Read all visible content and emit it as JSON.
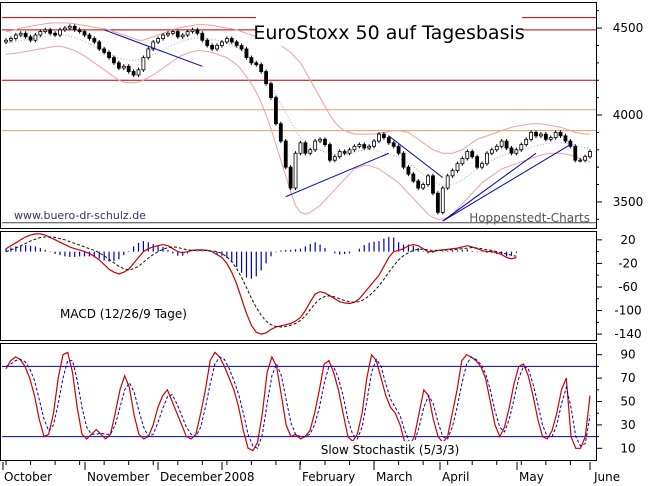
{
  "chart_data": [
    {
      "type": "candlestick",
      "title": "EuroStoxx 50 auf Tagesbasis",
      "ylim": [
        3350,
        4650
      ],
      "yticks": [
        3500,
        4000,
        4500
      ],
      "annotations": [
        "www.buero-dr-schulz.de",
        "Hoppenstedt-Charts"
      ],
      "horizontal_lines": [
        {
          "value": 4560,
          "color": "#c00000"
        },
        {
          "value": 4490,
          "color": "#c00000"
        },
        {
          "value": 4200,
          "color": "#c00000"
        },
        {
          "value": 4030,
          "color": "#e0a060"
        },
        {
          "value": 3910,
          "color": "#e0a060"
        },
        {
          "value": 3380,
          "color": "#444444"
        }
      ],
      "close": [
        4430,
        4440,
        4460,
        4470,
        4450,
        4430,
        4460,
        4480,
        4490,
        4470,
        4460,
        4490,
        4500,
        4510,
        4490,
        4480,
        4460,
        4440,
        4420,
        4380,
        4360,
        4330,
        4300,
        4270,
        4280,
        4250,
        4230,
        4260,
        4330,
        4380,
        4420,
        4440,
        4460,
        4470,
        4480,
        4450,
        4460,
        4480,
        4490,
        4470,
        4430,
        4400,
        4380,
        4400,
        4420,
        4440,
        4420,
        4400,
        4380,
        4330,
        4300,
        4290,
        4250,
        4180,
        4100,
        3950,
        3850,
        3700,
        3580,
        3780,
        3840,
        3780,
        3800,
        3850,
        3860,
        3830,
        3740,
        3760,
        3790,
        3780,
        3800,
        3820,
        3830,
        3810,
        3820,
        3850,
        3890,
        3870,
        3840,
        3820,
        3780,
        3700,
        3660,
        3620,
        3580,
        3600,
        3650,
        3550,
        3440,
        3580,
        3650,
        3680,
        3720,
        3750,
        3790,
        3760,
        3700,
        3720,
        3780,
        3800,
        3820,
        3850,
        3810,
        3780,
        3800,
        3830,
        3860,
        3900,
        3880,
        3890,
        3860,
        3870,
        3900,
        3880,
        3850,
        3820,
        3740,
        3740,
        3760,
        3790
      ],
      "bollinger_upper": [
        4480,
        4485,
        4490,
        4500,
        4505,
        4510,
        4515,
        4520,
        4525,
        4528,
        4530,
        4530,
        4530,
        4528,
        4525,
        4520,
        4515,
        4510,
        4505,
        4500,
        4495,
        4490,
        4480,
        4470,
        4460,
        4450,
        4440,
        4430,
        4430,
        4440,
        4450,
        4460,
        4470,
        4480,
        4490,
        4500,
        4505,
        4510,
        4515,
        4520,
        4520,
        4518,
        4515,
        4510,
        4505,
        4500,
        4495,
        4490,
        4480,
        4470,
        4460,
        4450,
        4440,
        4430,
        4420,
        4410,
        4400,
        4380,
        4360,
        4330,
        4300,
        4250,
        4200,
        4150,
        4100,
        4050,
        4000,
        3960,
        3930,
        3910,
        3900,
        3890,
        3890,
        3890,
        3890,
        3890,
        3895,
        3900,
        3905,
        3910,
        3910,
        3905,
        3900,
        3880,
        3860,
        3840,
        3820,
        3800,
        3790,
        3780,
        3780,
        3780,
        3790,
        3800,
        3820,
        3840,
        3860,
        3870,
        3880,
        3890,
        3900,
        3910,
        3920,
        3930,
        3935,
        3940,
        3945,
        3950,
        3950,
        3950,
        3945,
        3940,
        3935,
        3930,
        3920,
        3910,
        3900,
        3895,
        3890,
        3890
      ],
      "bollinger_lower": [
        4350,
        4352,
        4355,
        4360,
        4365,
        4370,
        4375,
        4380,
        4385,
        4390,
        4395,
        4395,
        4390,
        4380,
        4370,
        4355,
        4340,
        4320,
        4300,
        4280,
        4260,
        4240,
        4220,
        4200,
        4190,
        4185,
        4185,
        4190,
        4200,
        4215,
        4230,
        4250,
        4270,
        4290,
        4310,
        4330,
        4345,
        4355,
        4365,
        4370,
        4370,
        4365,
        4360,
        4350,
        4340,
        4330,
        4310,
        4290,
        4260,
        4220,
        4180,
        4130,
        4070,
        4000,
        3920,
        3830,
        3740,
        3650,
        3560,
        3480,
        3440,
        3430,
        3440,
        3460,
        3480,
        3510,
        3540,
        3570,
        3600,
        3630,
        3660,
        3690,
        3700,
        3710,
        3710,
        3700,
        3690,
        3670,
        3650,
        3630,
        3610,
        3580,
        3550,
        3520,
        3490,
        3460,
        3430,
        3410,
        3400,
        3400,
        3410,
        3430,
        3460,
        3490,
        3520,
        3550,
        3580,
        3610,
        3630,
        3650,
        3670,
        3690,
        3700,
        3710,
        3720,
        3730,
        3740,
        3750,
        3760,
        3770,
        3775,
        3780,
        3780,
        3780,
        3775,
        3770,
        3760,
        3750,
        3740,
        3730
      ],
      "ma": [
        4415,
        4418,
        4422,
        4428,
        4434,
        4438,
        4442,
        4446,
        4452,
        4458,
        4462,
        4462,
        4460,
        4454,
        4446,
        4436,
        4424,
        4410,
        4396,
        4382,
        4368,
        4354,
        4340,
        4328,
        4320,
        4316,
        4314,
        4318,
        4326,
        4336,
        4348,
        4362,
        4376,
        4390,
        4404,
        4416,
        4426,
        4434,
        4440,
        4444,
        4444,
        4440,
        4436,
        4430,
        4422,
        4414,
        4402,
        4390,
        4372,
        4348,
        4322,
        4292,
        4258,
        4218,
        4172,
        4118,
        4066,
        4014,
        3962,
        3908,
        3872,
        3844,
        3822,
        3808,
        3796,
        3788,
        3780,
        3774,
        3770,
        3770,
        3776,
        3784,
        3794,
        3800,
        3802,
        3798,
        3790,
        3782,
        3774,
        3766,
        3756,
        3742,
        3724,
        3704,
        3682,
        3660,
        3640,
        3620,
        3605,
        3596,
        3594,
        3600,
        3612,
        3628,
        3648,
        3668,
        3690,
        3708,
        3724,
        3740,
        3754,
        3766,
        3774,
        3782,
        3790,
        3798,
        3806,
        3814,
        3822,
        3830,
        3834,
        3838,
        3840,
        3840,
        3838,
        3834,
        3826,
        3818,
        3812,
        3808
      ],
      "trendlines": [
        {
          "points": [
            [
              20,
              4490
            ],
            [
              40,
              4280
            ]
          ]
        },
        {
          "points": [
            [
              57,
              3530
            ],
            [
              78,
              3780
            ]
          ]
        },
        {
          "points": [
            [
              78,
              3880
            ],
            [
              89,
              3640
            ]
          ]
        },
        {
          "points": [
            [
              89,
              3390
            ],
            [
              108,
              3780
            ]
          ]
        },
        {
          "points": [
            [
              89,
              3390
            ],
            [
              115,
              3830
            ]
          ]
        }
      ]
    },
    {
      "type": "line",
      "title": "MACD (12/26/9 Tage)",
      "ylim": [
        -150,
        35
      ],
      "yticks": [
        20,
        -20,
        -60,
        -100,
        -140
      ],
      "yticks2": [
        0,
        -40,
        -80,
        -120
      ],
      "series": [
        {
          "color": "#d00000",
          "values": [
            5,
            10,
            15,
            20,
            25,
            28,
            30,
            30,
            28,
            24,
            20,
            16,
            12,
            8,
            5,
            3,
            0,
            -3,
            -8,
            -14,
            -22,
            -30,
            -35,
            -38,
            -35,
            -30,
            -20,
            -10,
            0,
            5,
            8,
            10,
            12,
            10,
            5,
            0,
            -2,
            0,
            2,
            3,
            3,
            2,
            0,
            -5,
            -10,
            -20,
            -35,
            -55,
            -80,
            -105,
            -125,
            -137,
            -140,
            -138,
            -132,
            -128,
            -126,
            -124,
            -122,
            -118,
            -112,
            -100,
            -85,
            -72,
            -68,
            -70,
            -75,
            -80,
            -85,
            -87,
            -88,
            -86,
            -80,
            -70,
            -60,
            -50,
            -40,
            -25,
            -10,
            0,
            2,
            5,
            10,
            12,
            10,
            5,
            0,
            0,
            2,
            3,
            4,
            5,
            6,
            8,
            10,
            8,
            5,
            2,
            0,
            0,
            -2,
            -5,
            -10,
            -12,
            -10
          ]
        },
        {
          "color": "#111111",
          "dashed": true,
          "values": [
            0,
            3,
            6,
            10,
            14,
            18,
            21,
            24,
            25,
            25,
            24,
            22,
            20,
            17,
            14,
            11,
            8,
            5,
            2,
            -2,
            -7,
            -13,
            -19,
            -25,
            -29,
            -31,
            -29,
            -25,
            -18,
            -11,
            -5,
            0,
            4,
            7,
            8,
            7,
            5,
            3,
            2,
            2,
            2,
            2,
            1,
            0,
            -3,
            -9,
            -17,
            -29,
            -44,
            -61,
            -79,
            -95,
            -108,
            -118,
            -124,
            -127,
            -128,
            -127,
            -125,
            -122,
            -117,
            -109,
            -98,
            -88,
            -80,
            -76,
            -75,
            -77,
            -80,
            -83,
            -85,
            -86,
            -85,
            -81,
            -75,
            -67,
            -58,
            -47,
            -35,
            -24,
            -14,
            -7,
            -2,
            2,
            4,
            4,
            3,
            2,
            2,
            2,
            3,
            3,
            4,
            5,
            6,
            7,
            6,
            5,
            3,
            2,
            0,
            -2,
            -4,
            -6,
            -8
          ]
        },
        {
          "color": "#0000c0",
          "type": "histogram",
          "values": [
            5,
            7,
            9,
            10,
            11,
            10,
            9,
            6,
            3,
            -1,
            -4,
            -6,
            -8,
            -9,
            -9,
            -8,
            -8,
            -8,
            -10,
            -12,
            -15,
            -17,
            -16,
            -13,
            -6,
            1,
            9,
            15,
            18,
            16,
            13,
            10,
            8,
            3,
            -3,
            -7,
            -7,
            -3,
            0,
            1,
            1,
            0,
            -1,
            -5,
            -7,
            -11,
            -18,
            -26,
            -36,
            -44,
            -46,
            -42,
            -32,
            -20,
            -8,
            -1,
            2,
            3,
            3,
            4,
            5,
            9,
            13,
            16,
            12,
            6,
            0,
            -3,
            -5,
            -4,
            -3,
            0,
            5,
            11,
            15,
            17,
            18,
            22,
            25,
            24,
            16,
            12,
            12,
            10,
            6,
            1,
            -3,
            -2,
            0,
            1,
            1,
            2,
            2,
            3,
            4,
            1,
            -1,
            -1,
            -2,
            -2,
            -4,
            -6,
            -8,
            -7,
            -2
          ]
        }
      ]
    },
    {
      "type": "line",
      "title": "Slow Stochastik (5/3/3)",
      "ylim": [
        0,
        100
      ],
      "yticks": [
        90,
        70,
        50,
        30,
        10
      ],
      "yticks2": [
        80,
        60,
        40,
        20
      ],
      "horizontal_lines": [
        {
          "value": 80,
          "color": "#0000c0"
        },
        {
          "value": 20,
          "color": "#0000c0"
        }
      ],
      "series": [
        {
          "color": "#d00000",
          "values": [
            78,
            85,
            88,
            86,
            80,
            70,
            55,
            35,
            20,
            22,
            40,
            70,
            90,
            92,
            75,
            45,
            22,
            18,
            22,
            26,
            22,
            18,
            22,
            40,
            60,
            72,
            62,
            38,
            22,
            18,
            20,
            30,
            45,
            55,
            60,
            50,
            40,
            30,
            20,
            18,
            22,
            40,
            60,
            85,
            92,
            88,
            80,
            70,
            60,
            45,
            25,
            10,
            8,
            15,
            40,
            75,
            88,
            80,
            55,
            30,
            20,
            22,
            18,
            20,
            25,
            40,
            60,
            82,
            85,
            75,
            60,
            40,
            20,
            16,
            22,
            40,
            70,
            90,
            85,
            70,
            55,
            45,
            40,
            30,
            15,
            12,
            20,
            40,
            60,
            55,
            35,
            20,
            15,
            20,
            40,
            60,
            85,
            90,
            88,
            85,
            80,
            70,
            50,
            30,
            20,
            28,
            45,
            65,
            80,
            82,
            72,
            55,
            35,
            20,
            18,
            25,
            40,
            60,
            70,
            20,
            10,
            10,
            20,
            55
          ]
        },
        {
          "color": "#0000c0",
          "dashed": true,
          "values": [
            80,
            82,
            85,
            86,
            84,
            78,
            68,
            52,
            35,
            25,
            30,
            48,
            70,
            85,
            85,
            68,
            45,
            28,
            22,
            22,
            23,
            22,
            22,
            30,
            45,
            60,
            66,
            58,
            42,
            28,
            20,
            22,
            32,
            44,
            54,
            56,
            48,
            38,
            28,
            22,
            20,
            28,
            45,
            65,
            82,
            88,
            86,
            78,
            68,
            56,
            40,
            22,
            12,
            10,
            22,
            48,
            72,
            82,
            72,
            52,
            32,
            22,
            20,
            20,
            22,
            30,
            45,
            65,
            80,
            80,
            70,
            55,
            35,
            22,
            18,
            28,
            50,
            75,
            86,
            80,
            65,
            52,
            45,
            38,
            25,
            15,
            15,
            28,
            45,
            55,
            48,
            32,
            20,
            18,
            28,
            45,
            65,
            82,
            88,
            86,
            82,
            74,
            60,
            42,
            28,
            24,
            35,
            52,
            70,
            80,
            78,
            65,
            48,
            30,
            20,
            20,
            30,
            48,
            62,
            45,
            20,
            12,
            14,
            38
          ]
        }
      ]
    }
  ],
  "x_axis": {
    "months": [
      "October",
      "November",
      "December",
      "2008",
      "February",
      "March",
      "April",
      "May",
      "June"
    ]
  }
}
